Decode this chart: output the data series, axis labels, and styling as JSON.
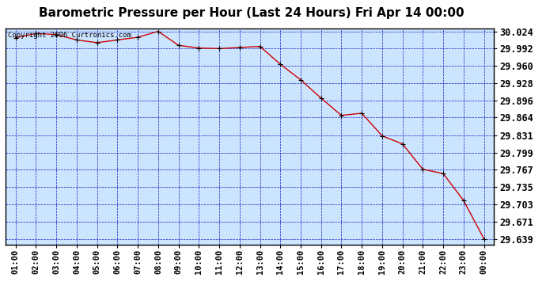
{
  "title": "Barometric Pressure per Hour (Last 24 Hours) Fri Apr 14 00:00",
  "copyright": "Copyright 2006 Curtronics.com",
  "x_labels": [
    "01:00",
    "02:00",
    "03:00",
    "04:00",
    "05:00",
    "06:00",
    "07:00",
    "08:00",
    "09:00",
    "10:00",
    "11:00",
    "12:00",
    "13:00",
    "14:00",
    "15:00",
    "16:00",
    "17:00",
    "18:00",
    "19:00",
    "20:00",
    "21:00",
    "22:00",
    "23:00",
    "00:00"
  ],
  "y_values": [
    30.012,
    30.02,
    30.018,
    30.008,
    30.003,
    30.008,
    30.013,
    30.024,
    29.998,
    29.993,
    29.992,
    29.994,
    29.996,
    29.963,
    29.934,
    29.9,
    29.868,
    29.872,
    29.83,
    29.815,
    29.768,
    29.76,
    29.71,
    29.639
  ],
  "y_ticks": [
    29.639,
    29.671,
    29.703,
    29.735,
    29.767,
    29.799,
    29.831,
    29.864,
    29.896,
    29.928,
    29.96,
    29.992,
    30.024
  ],
  "y_min": 29.639,
  "y_max": 30.024,
  "line_color": "#cc0000",
  "marker_color": "#000000",
  "bg_color": "#cce5ff",
  "grid_color": "#0000bb",
  "title_fontsize": 11,
  "copyright_fontsize": 6.5,
  "tick_fontsize": 8.5,
  "xtick_fontsize": 7.5
}
